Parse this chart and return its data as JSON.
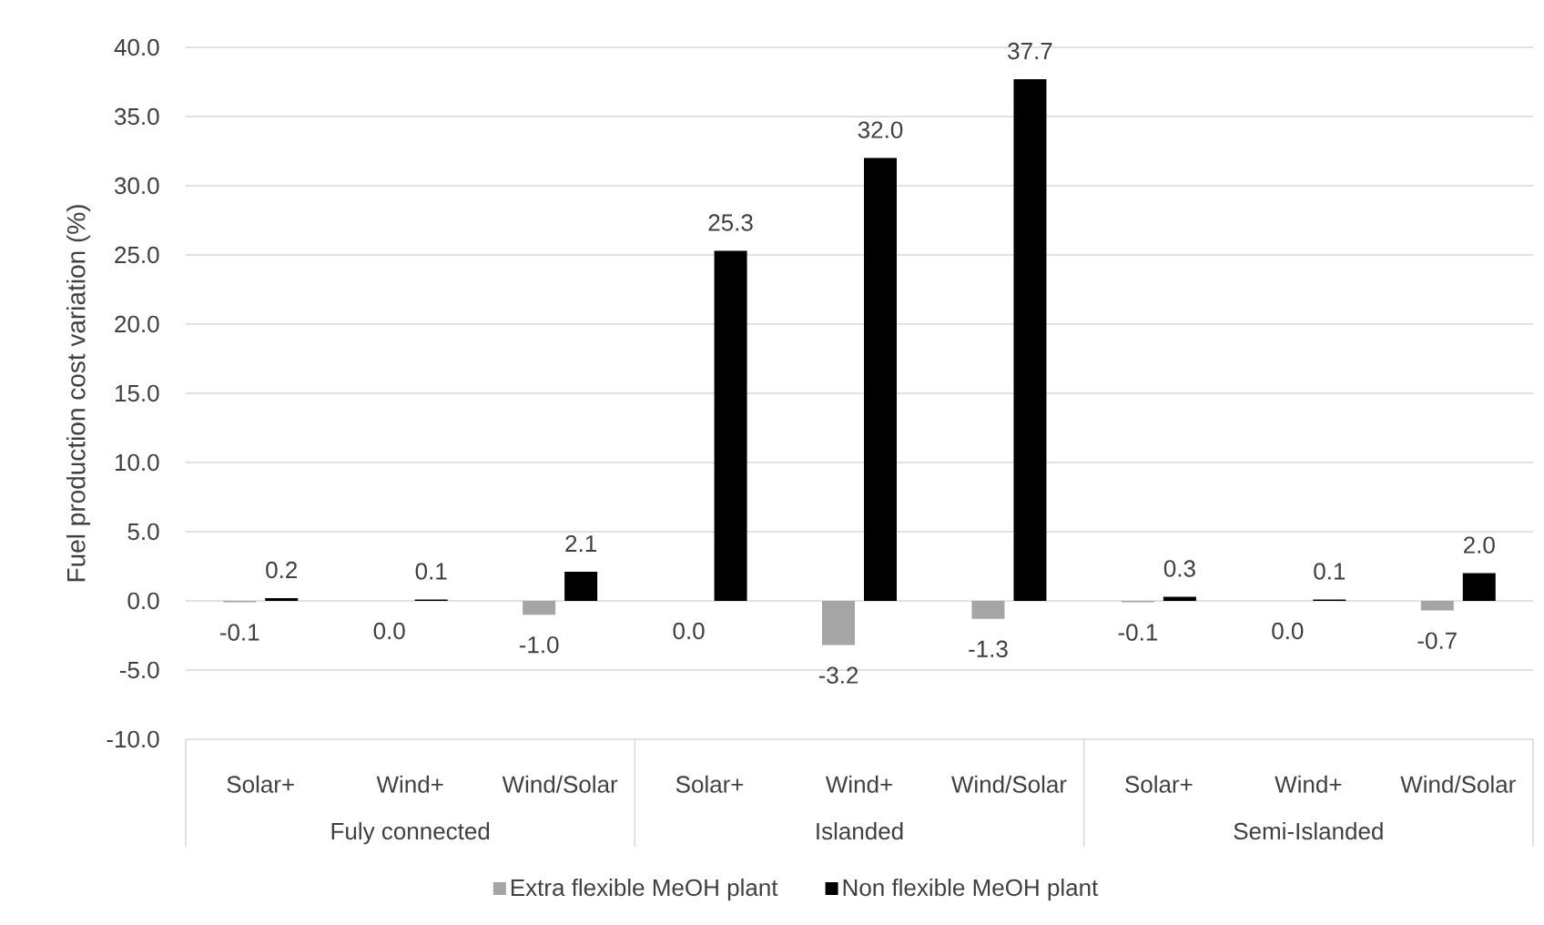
{
  "chart_data": {
    "type": "bar",
    "ylabel": "Fuel production cost variation (%)",
    "categories": [
      "Solar+",
      "Wind+",
      "Wind/Solar",
      "Solar+",
      "Wind+",
      "Wind/Solar",
      "Solar+",
      "Wind+",
      "Wind/Solar"
    ],
    "annotations": [
      "Fuly connected",
      "Islanded",
      "Semi-Islanded"
    ],
    "series": [
      {
        "name": "Extra flexible MeOH plant",
        "color": "#a5a5a5",
        "values": [
          -0.1,
          0.0,
          -1.0,
          0.0,
          -3.2,
          -1.3,
          -0.1,
          0.0,
          -0.7
        ],
        "value_labels": [
          "-0.1",
          "0.0",
          "-1.0",
          "0.0",
          "-3.2",
          "-1.3",
          "-0.1",
          "0.0",
          "-0.7"
        ]
      },
      {
        "name": "Non flexible MeOH plant",
        "color": "#000000",
        "values": [
          0.2,
          0.1,
          2.1,
          25.3,
          32.0,
          37.7,
          0.3,
          0.1,
          2.0
        ],
        "value_labels": [
          "0.2",
          "0.1",
          "2.1",
          "25.3",
          "32.0",
          "37.7",
          "0.3",
          "0.1",
          "2.0"
        ]
      }
    ],
    "ylim": [
      -10,
      40
    ],
    "yticks": [
      {
        "value": -10,
        "label": "-10.0"
      },
      {
        "value": -5,
        "label": "-5.0"
      },
      {
        "value": 0,
        "label": "0.0"
      },
      {
        "value": 5,
        "label": "5.0"
      },
      {
        "value": 10,
        "label": "10.0"
      },
      {
        "value": 15,
        "label": "15.0"
      },
      {
        "value": 20,
        "label": "20.0"
      },
      {
        "value": 25,
        "label": "25.0"
      },
      {
        "value": 30,
        "label": "30.0"
      },
      {
        "value": 35,
        "label": "35.0"
      },
      {
        "value": 40,
        "label": "40.0"
      }
    ],
    "grid": "y",
    "legend": "bottom"
  }
}
